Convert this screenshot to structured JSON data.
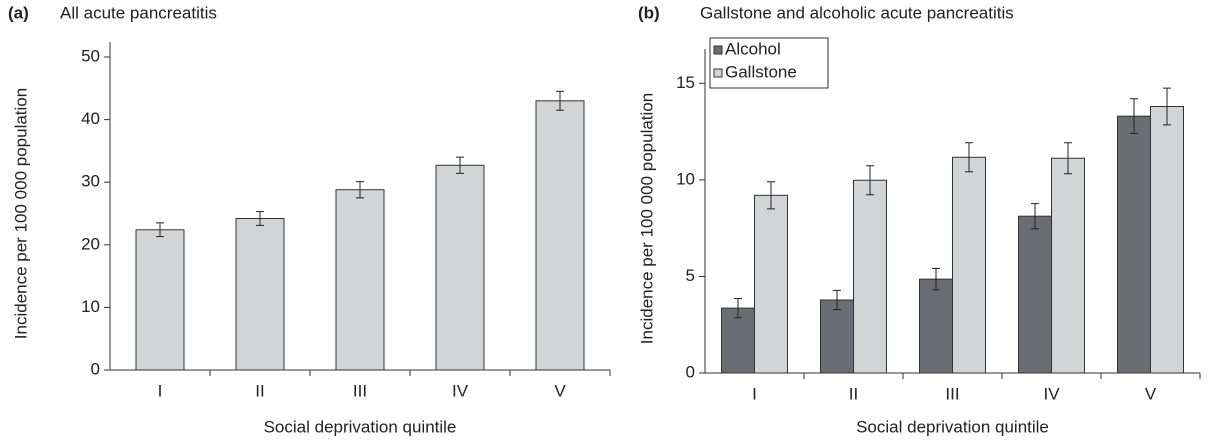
{
  "chart_data": [
    {
      "type": "bar",
      "panel_label": "(a)",
      "title": "All acute pancreatitis",
      "x_label": "Social deprivation quintile",
      "y_label": "Incidence per 100 000 population",
      "categories": [
        "I",
        "II",
        "III",
        "IV",
        "V"
      ],
      "values": [
        22.4,
        24.2,
        28.8,
        32.7,
        43.0
      ],
      "errors": [
        1.1,
        1.1,
        1.3,
        1.3,
        1.5
      ],
      "color": "#d3d4d6",
      "ylim": [
        0,
        50
      ],
      "yticks": [
        0,
        10,
        20,
        30,
        40,
        50
      ]
    },
    {
      "type": "bar",
      "panel_label": "(b)",
      "title": "Gallstone and alcoholic acute pancreatitis",
      "x_label": "Social deprivation quintile",
      "y_label": "Incidence per 100 000 population",
      "categories": [
        "I",
        "II",
        "III",
        "IV",
        "V"
      ],
      "series": [
        {
          "name": "Alcohol",
          "color": "#6b6d72",
          "values": [
            3.36,
            3.78,
            4.86,
            8.12,
            13.3
          ],
          "errors": [
            0.5,
            0.5,
            0.55,
            0.65,
            0.9
          ]
        },
        {
          "name": "Gallstone",
          "color": "#d3d4d6",
          "values": [
            9.2,
            9.98,
            11.17,
            11.12,
            13.8
          ],
          "errors": [
            0.7,
            0.75,
            0.75,
            0.8,
            0.95
          ]
        }
      ],
      "legend": "upper left",
      "ylim": [
        0,
        16
      ],
      "yticks": [
        0,
        5,
        10,
        15
      ]
    }
  ]
}
